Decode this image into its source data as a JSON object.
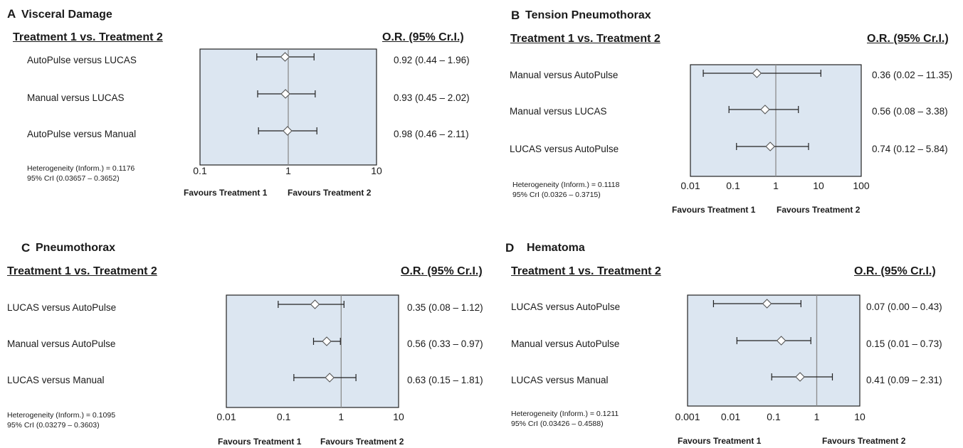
{
  "chart_data": [
    {
      "type": "forest",
      "letter": "A",
      "title": "Visceral Damage",
      "left_header": "Treatment 1 vs. Treatment 2",
      "right_header": "O.R. (95% Cr.I.)",
      "scale": "log",
      "xlim": [
        0.1,
        10
      ],
      "ticks": [
        {
          "v": 0.1,
          "label": "0.1"
        },
        {
          "v": 1,
          "label": "1"
        },
        {
          "v": 10,
          "label": "10"
        }
      ],
      "ref_line": 1,
      "rows": [
        {
          "label": "AutoPulse versus LUCAS",
          "or": 0.92,
          "lo": 0.44,
          "hi": 1.96,
          "text": "0.92 (0.44 – 1.96)"
        },
        {
          "label": "Manual  versus LUCAS",
          "or": 0.93,
          "lo": 0.45,
          "hi": 2.02,
          "text": "0.93 (0.45 – 2.02)"
        },
        {
          "label": "AutoPulse versus Manual",
          "or": 0.98,
          "lo": 0.46,
          "hi": 2.11,
          "text": "0.98 (0.46 – 2.11)"
        }
      ],
      "heterogeneity": [
        "Heterogeneity (Inform.) = 0.1176",
        "95% CrI (0.03657 – 0.3652)"
      ],
      "favours_left": "Favours Treatment 1",
      "favours_right": "Favours Treatment 2"
    },
    {
      "type": "forest",
      "letter": "B",
      "title": "Tension Pneumothorax",
      "left_header": "Treatment 1 vs. Treatment 2",
      "right_header": "O.R. (95% Cr.I.)",
      "scale": "log",
      "xlim": [
        0.01,
        100
      ],
      "ticks": [
        {
          "v": 0.01,
          "label": "0.01"
        },
        {
          "v": 0.1,
          "label": "0.1"
        },
        {
          "v": 1,
          "label": "1"
        },
        {
          "v": 10,
          "label": "10"
        },
        {
          "v": 100,
          "label": "100"
        }
      ],
      "ref_line": 1,
      "rows": [
        {
          "label": "Manual   versus AutoPulse",
          "or": 0.36,
          "lo": 0.02,
          "hi": 11.35,
          "text": "0.36 (0.02 – 11.35)"
        },
        {
          "label": "Manual  versus LUCAS",
          "or": 0.56,
          "lo": 0.08,
          "hi": 3.38,
          "text": "0.56 (0.08 – 3.38)"
        },
        {
          "label": "LUCAS  versus AutoPulse",
          "or": 0.74,
          "lo": 0.12,
          "hi": 5.84,
          "text": "0.74 (0.12 – 5.84)"
        }
      ],
      "heterogeneity": [
        "Heterogeneity (Inform.) = 0.1118",
        "95% CrI (0.0326 – 0.3715)"
      ],
      "favours_left": "Favours Treatment 1",
      "favours_right": "Favours Treatment 2"
    },
    {
      "type": "forest",
      "letter": "C",
      "title": "Pneumothorax",
      "left_header": "Treatment 1 vs. Treatment 2",
      "right_header": "O.R. (95% Cr.I.)",
      "scale": "log",
      "xlim": [
        0.01,
        10
      ],
      "ticks": [
        {
          "v": 0.01,
          "label": "0.01"
        },
        {
          "v": 0.1,
          "label": "0.1"
        },
        {
          "v": 1,
          "label": "1"
        },
        {
          "v": 10,
          "label": "10"
        }
      ],
      "ref_line": 1,
      "rows": [
        {
          "label": "LUCAS  versus AutoPulse",
          "or": 0.35,
          "lo": 0.08,
          "hi": 1.12,
          "text": "0.35 (0.08 – 1.12)"
        },
        {
          "label": "Manual  versus AutoPulse",
          "or": 0.56,
          "lo": 0.33,
          "hi": 0.97,
          "text": "0.56 (0.33 – 0.97)"
        },
        {
          "label": "LUCAS  versus Manual",
          "or": 0.63,
          "lo": 0.15,
          "hi": 1.81,
          "text": "0.63 (0.15 – 1.81)"
        }
      ],
      "heterogeneity": [
        "Heterogeneity (Inform.) = 0.1095",
        "95% CrI (0.03279 – 0.3603)"
      ],
      "favours_left": "Favours Treatment 1",
      "favours_right": "Favours Treatment 2"
    },
    {
      "type": "forest",
      "letter": "D",
      "title": "Hematoma",
      "left_header": "Treatment 1 vs. Treatment 2",
      "right_header": "O.R. (95% Cr.I.)",
      "scale": "log",
      "xlim": [
        0.001,
        10
      ],
      "ticks": [
        {
          "v": 0.001,
          "label": "0.001"
        },
        {
          "v": 0.01,
          "label": "0.01"
        },
        {
          "v": 0.1,
          "label": "0.1"
        },
        {
          "v": 1,
          "label": "1"
        },
        {
          "v": 10,
          "label": "10"
        }
      ],
      "ref_line": 1,
      "rows": [
        {
          "label": "LUCAS  versus AutoPulse",
          "or": 0.07,
          "lo": 0.004,
          "hi": 0.43,
          "text": "0.07 (0.00 – 0.43)"
        },
        {
          "label": "Manual  versus AutoPulse",
          "or": 0.15,
          "lo": 0.014,
          "hi": 0.73,
          "text": "0.15 (0.01 – 0.73)"
        },
        {
          "label": "LUCAS  versus Manual",
          "or": 0.41,
          "lo": 0.09,
          "hi": 2.31,
          "text": "0.41 (0.09 – 2.31)"
        }
      ],
      "heterogeneity": [
        "Heterogeneity (Inform.) = 0.1211",
        "95% CrI (0.03426 – 0.4588)"
      ],
      "favours_left": "Favours Treatment 1",
      "favours_right": "Favours Treatment 2"
    }
  ],
  "colors": {
    "plot_fill": "#dce6f1",
    "plot_border": "#222222",
    "ref_line": "#8c8c8c",
    "marker_fill": "#ffffff",
    "whisker": "#222222"
  }
}
